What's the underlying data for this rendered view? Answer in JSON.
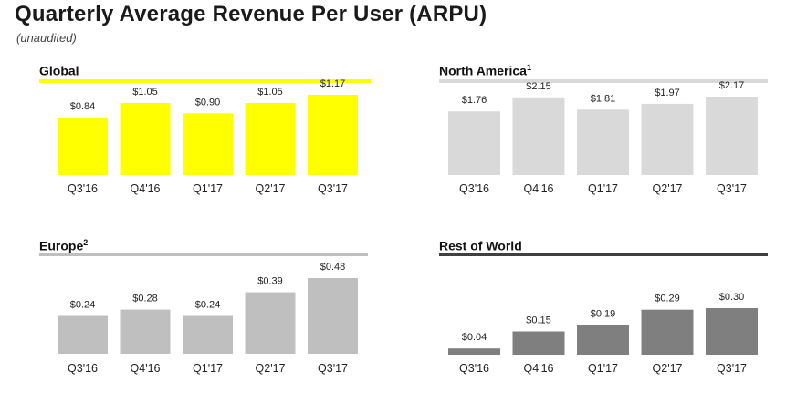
{
  "header": {
    "title": "Quarterly Average Revenue Per User (ARPU)",
    "subtitle": "(unaudited)"
  },
  "chart_data": [
    {
      "type": "bar",
      "title": "Global",
      "footnote": "",
      "categories": [
        "Q3'16",
        "Q4'16",
        "Q1'17",
        "Q2'17",
        "Q3'17"
      ],
      "values": [
        0.84,
        1.05,
        0.9,
        1.05,
        1.17
      ],
      "labels": [
        "$0.84",
        "$1.05",
        "$0.90",
        "$1.05",
        "$1.17"
      ],
      "bar_color": "#ffff00",
      "rule_color": "#ffff00",
      "xlabel": "",
      "ylabel": ""
    },
    {
      "type": "bar",
      "title": "North America",
      "footnote": "1",
      "categories": [
        "Q3'16",
        "Q4'16",
        "Q1'17",
        "Q2'17",
        "Q3'17"
      ],
      "values": [
        1.76,
        2.15,
        1.81,
        1.97,
        2.17
      ],
      "labels": [
        "$1.76",
        "$2.15",
        "$1.81",
        "$1.97",
        "$2.17"
      ],
      "bar_color": "#d9d9d9",
      "rule_color": "#d9d9d9",
      "xlabel": "",
      "ylabel": ""
    },
    {
      "type": "bar",
      "title": "Europe",
      "footnote": "2",
      "categories": [
        "Q3'16",
        "Q4'16",
        "Q1'17",
        "Q2'17",
        "Q3'17"
      ],
      "values": [
        0.24,
        0.28,
        0.24,
        0.39,
        0.48
      ],
      "labels": [
        "$0.24",
        "$0.28",
        "$0.24",
        "$0.39",
        "$0.48"
      ],
      "bar_color": "#bfbfbf",
      "rule_color": "#bfbfbf",
      "xlabel": "",
      "ylabel": ""
    },
    {
      "type": "bar",
      "title": "Rest of World",
      "footnote": "",
      "categories": [
        "Q3'16",
        "Q4'16",
        "Q1'17",
        "Q2'17",
        "Q3'17"
      ],
      "values": [
        0.04,
        0.15,
        0.19,
        0.29,
        0.3
      ],
      "labels": [
        "$0.04",
        "$0.15",
        "$0.19",
        "$0.29",
        "$0.30"
      ],
      "bar_color": "#7f7f7f",
      "rule_color": "#404040",
      "xlabel": "",
      "ylabel": ""
    }
  ]
}
